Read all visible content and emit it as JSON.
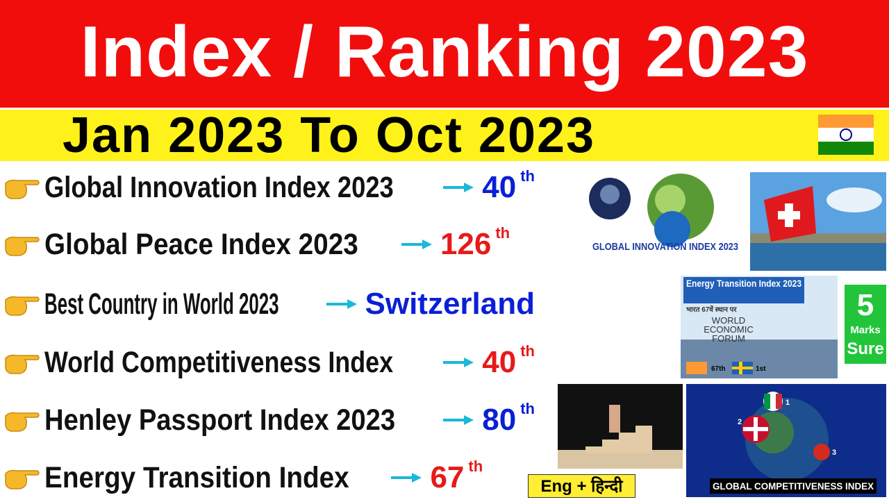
{
  "header": {
    "title": "Index / Ranking 2023",
    "subtitle": "Jan 2023 To Oct 2023"
  },
  "items": [
    {
      "name": "Global Innovation Index 2023",
      "value": "40",
      "suffix": "th"
    },
    {
      "name": "Global Peace Index 2023",
      "value": "126",
      "suffix": "th"
    },
    {
      "name": "Best Country in World 2023",
      "value": "Switzerland"
    },
    {
      "name": "World Competitiveness Index",
      "value": "40",
      "suffix": "th"
    },
    {
      "name": "Henley Passport Index 2023",
      "value": "80",
      "suffix": "th"
    },
    {
      "name": "Energy Transition Index",
      "value": "67",
      "suffix": "th"
    }
  ],
  "images": {
    "innovation": {
      "caption": "GLOBAL INNOVATION INDEX 2023"
    },
    "energy": {
      "title": "Energy Transition Index 2023",
      "hindi": "भारत 67वें स्थान पर",
      "forum": "WORLD ECONOMIC FORUM",
      "india_rank": "67th",
      "sweden_rank": "1st"
    },
    "badge": {
      "number": "5",
      "line1": "Marks",
      "line2": "Sure"
    },
    "language": "Eng + हिन्दी",
    "competitiveness": {
      "caption": "GLOBAL COMPETITIVENESS INDEX",
      "ranks": [
        "1",
        "2",
        "3"
      ]
    }
  }
}
